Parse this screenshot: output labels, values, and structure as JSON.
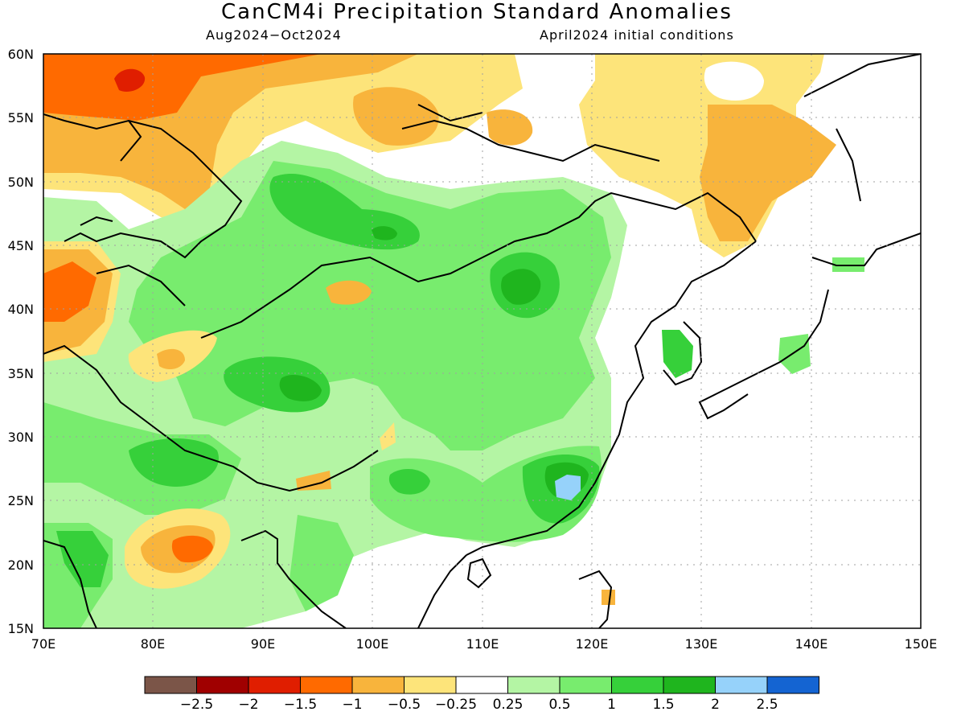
{
  "title": "CanCM4i Precipitation Standard Anomalies",
  "period": "Aug2024−Oct2024",
  "init": "April2024 initial conditions",
  "lon_labels": [
    "70E",
    "80E",
    "90E",
    "100E",
    "110E",
    "120E",
    "130E",
    "140E",
    "150E"
  ],
  "lat_labels": [
    "60N",
    "55N",
    "50N",
    "45N",
    "40N",
    "35N",
    "30N",
    "25N",
    "20N",
    "15N"
  ],
  "colorbar": {
    "colors": [
      "#7b5548",
      "#a00000",
      "#e01e00",
      "#ff6a00",
      "#f8b43c",
      "#fde47a",
      "#ffffff",
      "#b4f5a4",
      "#78ec6e",
      "#36d03a",
      "#1fb51e",
      "#96d2fa",
      "#1464d2"
    ],
    "labels": [
      "−2.5",
      "−2",
      "−1.5",
      "−1",
      "−0.5",
      "−0.25",
      "0.25",
      "0.5",
      "1",
      "1.5",
      "2",
      "2.5"
    ]
  },
  "colors": {
    "dark_brown": "#7b5548",
    "dark_red": "#a00000",
    "red": "#e01e00",
    "orange": "#ff6a00",
    "light_orange": "#f8b43c",
    "yellow": "#fde47a",
    "light_green": "#b4f5a4",
    "green": "#78ec6e",
    "mid_green": "#36d03a",
    "dark_green": "#1fb51e",
    "light_blue": "#96d2fa",
    "blue": "#1464d2"
  }
}
